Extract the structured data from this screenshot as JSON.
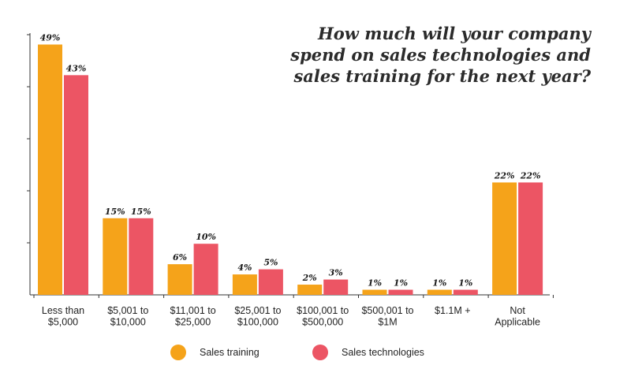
{
  "chart_data": {
    "type": "bar",
    "title_lines": [
      "How much will your company",
      "spend on sales technologies and",
      "sales training for the next year?"
    ],
    "categories": [
      [
        "Less than",
        "$5,000"
      ],
      [
        "$5,001 to",
        "$10,000"
      ],
      [
        "$11,001 to",
        "$25,000"
      ],
      [
        "$25,001 to",
        "$100,000"
      ],
      [
        "$100,001 to",
        "$500,000"
      ],
      [
        "$500,001 to",
        "$1M"
      ],
      [
        "$1.1M +"
      ],
      [
        "Not",
        "Applicable"
      ]
    ],
    "series": [
      {
        "name": "Sales training",
        "color": "#f5a31a",
        "values": [
          49,
          15,
          6,
          4,
          2,
          1,
          1,
          22
        ],
        "labels": [
          "49%",
          "15%",
          "6%",
          "4%",
          "2%",
          "1%",
          "1%",
          "22%"
        ]
      },
      {
        "name": "Sales technologies",
        "color": "#ec5564",
        "values": [
          43,
          15,
          10,
          5,
          3,
          1,
          1,
          22
        ],
        "labels": [
          "43%",
          "15%",
          "10%",
          "5%",
          "3%",
          "1%",
          "1%",
          "22%"
        ]
      }
    ],
    "ylim": [
      0,
      50
    ],
    "xlabel": "",
    "ylabel": "",
    "grid": false,
    "legend_position": "bottom"
  }
}
